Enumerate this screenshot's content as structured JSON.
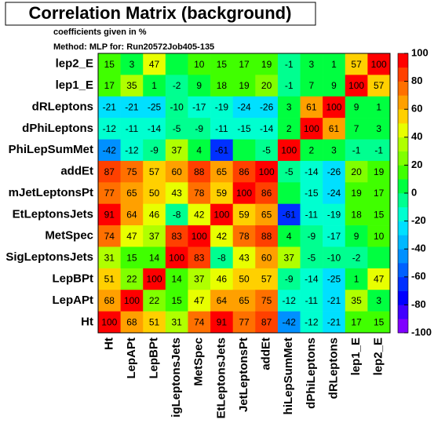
{
  "chart_data": {
    "type": "heatmap",
    "title": "Correlation Matrix (background)",
    "subtitle": [
      "coefficients given in %",
      "Method: MLP for: Run20572Job405-135"
    ],
    "x_categories": [
      "Ht",
      "LepAPt",
      "LepBPt",
      "igLeptonsJets",
      "MetSpec",
      "EtLeptonsJets",
      "JetLeptonsPt",
      "addEt",
      "hiLepSumMet",
      "dPhiLeptons",
      "dRLeptons",
      "lep1_E",
      "lep2_E"
    ],
    "y_categories": [
      "lep2_E",
      "lep1_E",
      "dRLeptons",
      "dPhiLeptons",
      "PhiLepSumMet",
      "addEt",
      "mJetLeptonsPt",
      "EtLeptonsJets",
      "MetSpec",
      "SigLeptonsJets",
      "LepBPt",
      "LepAPt",
      "Ht"
    ],
    "values": [
      [
        15,
        3,
        47,
        0,
        10,
        15,
        17,
        19,
        -1,
        3,
        1,
        57,
        100
      ],
      [
        17,
        35,
        1,
        -2,
        9,
        18,
        19,
        20,
        -1,
        7,
        9,
        100,
        57
      ],
      [
        -21,
        -21,
        -25,
        -10,
        -17,
        -19,
        -24,
        -26,
        3,
        61,
        100,
        9,
        1
      ],
      [
        -12,
        -11,
        -14,
        -5,
        -9,
        -11,
        -15,
        -14,
        2,
        100,
        61,
        7,
        3
      ],
      [
        -42,
        -12,
        -9,
        37,
        4,
        -61,
        0,
        -5,
        100,
        2,
        3,
        -1,
        -1
      ],
      [
        87,
        75,
        57,
        60,
        88,
        65,
        86,
        100,
        -5,
        -14,
        -26,
        20,
        19
      ],
      [
        77,
        65,
        50,
        43,
        78,
        59,
        100,
        86,
        0,
        -15,
        -24,
        19,
        17
      ],
      [
        91,
        64,
        46,
        -8,
        42,
        100,
        59,
        65,
        -61,
        -11,
        -19,
        18,
        15
      ],
      [
        74,
        47,
        37,
        83,
        100,
        42,
        78,
        88,
        4,
        -9,
        -17,
        9,
        10
      ],
      [
        31,
        15,
        14,
        100,
        83,
        -8,
        43,
        60,
        37,
        -5,
        -10,
        -2,
        0
      ],
      [
        51,
        22,
        100,
        14,
        37,
        46,
        50,
        57,
        -9,
        -14,
        -25,
        1,
        47
      ],
      [
        68,
        100,
        22,
        15,
        47,
        64,
        65,
        75,
        -12,
        -11,
        -21,
        35,
        3
      ],
      [
        100,
        68,
        51,
        31,
        74,
        91,
        77,
        87,
        -42,
        -12,
        -21,
        17,
        15
      ]
    ],
    "zlim": [
      -100,
      100
    ],
    "zticks": [
      -100,
      -80,
      -60,
      -40,
      -20,
      0,
      20,
      40,
      60,
      80,
      100
    ],
    "palette": [
      "#8000ff",
      "#4000ff",
      "#0000ff",
      "#0030ff",
      "#0060ff",
      "#0090ff",
      "#00b8ff",
      "#00e0ff",
      "#00ffd0",
      "#00ff90",
      "#00ff40",
      "#40ff00",
      "#80ff00",
      "#b0ff00",
      "#e8ff00",
      "#ffd000",
      "#ffa000",
      "#ff7000",
      "#ff4000",
      "#ff0000"
    ]
  }
}
